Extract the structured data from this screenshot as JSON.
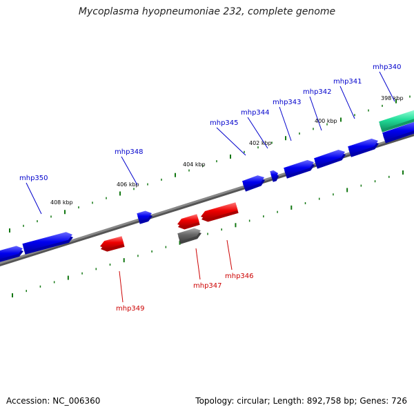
{
  "title": "Mycoplasma hyopneumoniae 232, complete genome",
  "footer": {
    "accession": "Accession: NC_006360",
    "summary": "Topology: circular; Length: 892,758 bp; Genes: 726"
  },
  "colors": {
    "forward_gene": "#0000ee",
    "reverse_gene": "#ee0000",
    "rna_gene": "#22dd99",
    "other_gene": "#666666",
    "backbone": "#888888",
    "tick": "#117711",
    "forward_label": "#0000cc",
    "reverse_label": "#cc0000"
  },
  "scale_labels": [
    "398 kbp",
    "400 kbp",
    "402 kbp",
    "404 kbp",
    "406 kbp",
    "408 kbp"
  ],
  "genes": [
    {
      "name": "mhp340",
      "strand": "forward",
      "type": "rna"
    },
    {
      "name": "mhp341",
      "strand": "forward",
      "type": "cds"
    },
    {
      "name": "mhp342",
      "strand": "forward",
      "type": "cds"
    },
    {
      "name": "mhp343",
      "strand": "forward",
      "type": "cds"
    },
    {
      "name": "mhp344",
      "strand": "forward",
      "type": "cds"
    },
    {
      "name": "mhp345",
      "strand": "forward",
      "type": "cds"
    },
    {
      "name": "mhp346",
      "strand": "reverse",
      "type": "cds"
    },
    {
      "name": "mhp347",
      "strand": "reverse",
      "type": "cds"
    },
    {
      "name": "mhp348",
      "strand": "forward",
      "type": "cds"
    },
    {
      "name": "mhp349",
      "strand": "reverse",
      "type": "cds"
    },
    {
      "name": "mhp350",
      "strand": "forward",
      "type": "cds"
    }
  ]
}
